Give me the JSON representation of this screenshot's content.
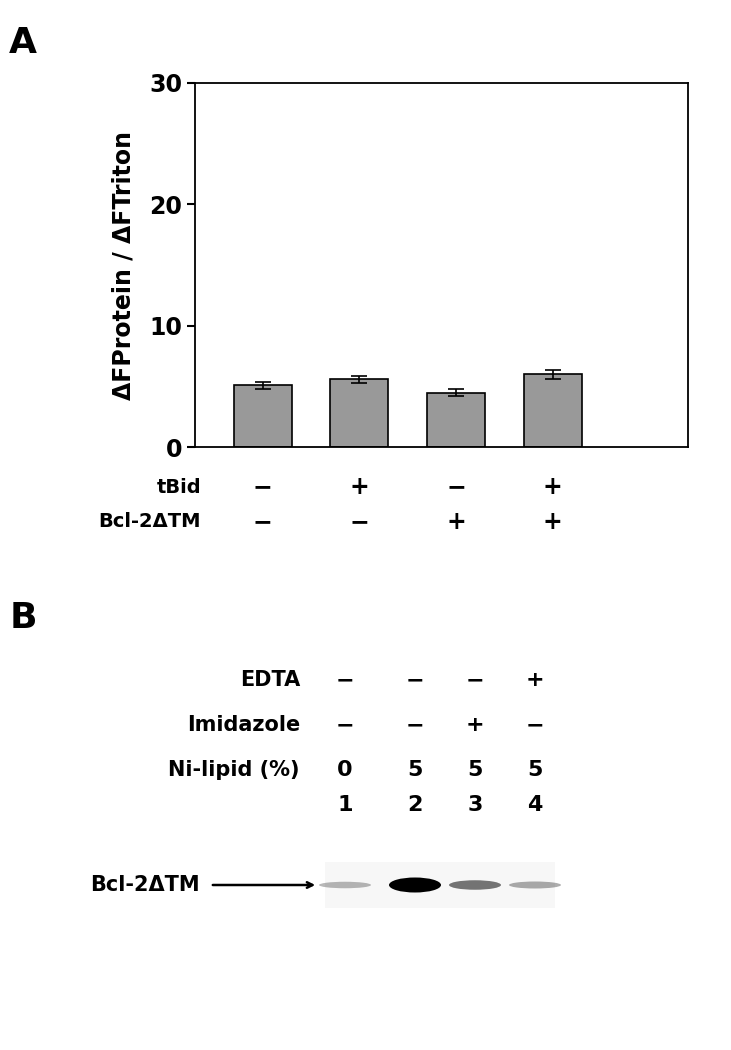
{
  "chart_data": {
    "type": "bar",
    "panel": "A",
    "ylabel": "ΔFProtein / ΔFTriton",
    "categories": [
      null,
      null,
      null,
      null
    ],
    "conditions": [
      {
        "name": "tBid",
        "values": [
          "−",
          "+",
          "−",
          "+"
        ]
      },
      {
        "name": "Bcl-2ΔTM",
        "values": [
          "−",
          "−",
          "+",
          "+"
        ]
      }
    ],
    "values": [
      5.1,
      5.6,
      4.5,
      6.0
    ],
    "errors": [
      0.3,
      0.3,
      0.3,
      0.35
    ],
    "color": "#999999",
    "ylim": [
      0,
      30
    ],
    "yticks": [
      0,
      10,
      20,
      30
    ],
    "grid": false,
    "tick_labels": "y"
  },
  "blot": {
    "panel": "B",
    "rows": [
      {
        "name": "EDTA",
        "values": [
          "−",
          "−",
          "−",
          "+"
        ]
      },
      {
        "name": "Imidazole",
        "values": [
          "−",
          "−",
          "+",
          "−"
        ]
      },
      {
        "name": "Ni-lipid (%)",
        "values": [
          "0",
          "5",
          "5",
          "5"
        ]
      }
    ],
    "lanes": [
      "1",
      "2",
      "3",
      "4"
    ],
    "band_label": "Bcl-2ΔTM",
    "band_intensity": [
      0.15,
      1.0,
      0.45,
      0.2
    ]
  }
}
